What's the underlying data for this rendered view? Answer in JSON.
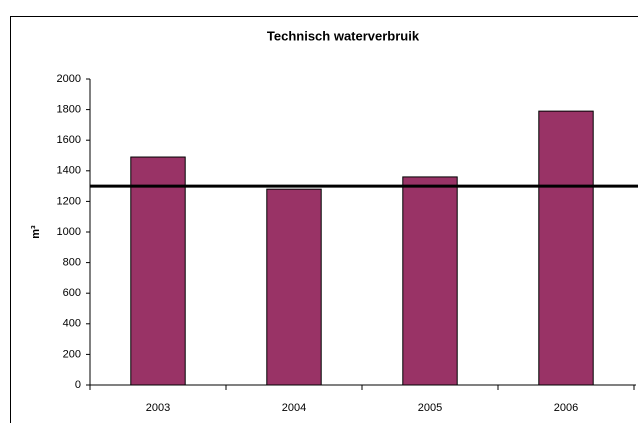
{
  "chart_data": {
    "type": "bar",
    "title": "Technisch waterverbruik",
    "y_label": "m³",
    "categories": [
      "2003",
      "2004",
      "2005",
      "2006"
    ],
    "values": [
      1490,
      1280,
      1360,
      1790
    ],
    "color": "#993366",
    "reference_line": 1300,
    "ylim": [
      0,
      2000
    ],
    "yticks": [
      0,
      200,
      400,
      600,
      800,
      1000,
      1200,
      1400,
      1600,
      1800,
      2000
    ],
    "grid": false
  }
}
